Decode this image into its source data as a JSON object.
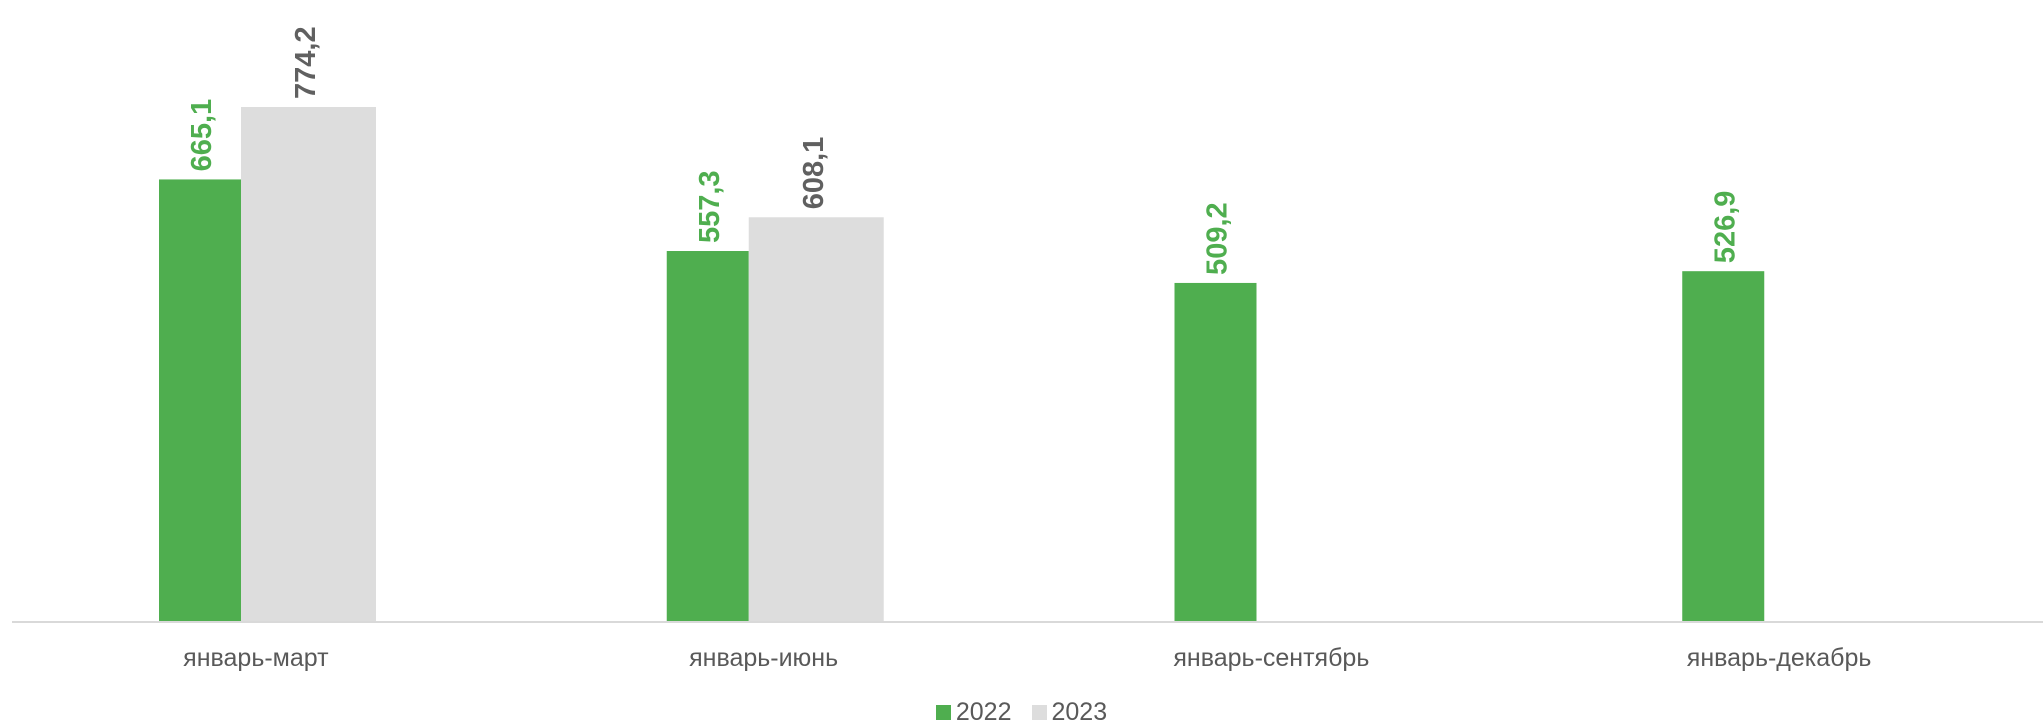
{
  "chart_data": {
    "type": "bar",
    "categories": [
      "январь-март",
      "январь-июнь",
      "январь-сентябрь",
      "январь-декабрь"
    ],
    "series": [
      {
        "name": "2022",
        "color": "#4FAE4F",
        "values": [
          665.1,
          557.3,
          509.2,
          526.9
        ],
        "labels": [
          "665,1",
          "557,3",
          "509,2",
          "526,9"
        ]
      },
      {
        "name": "2023",
        "color": "#DDDDDD",
        "label_color": "#606060",
        "values": [
          774.2,
          608.1,
          null,
          null
        ],
        "labels": [
          "774,2",
          "608,1",
          null,
          null
        ]
      }
    ],
    "ylim": [
      0,
      845
    ],
    "legend_position": "bottom",
    "grid": false
  }
}
